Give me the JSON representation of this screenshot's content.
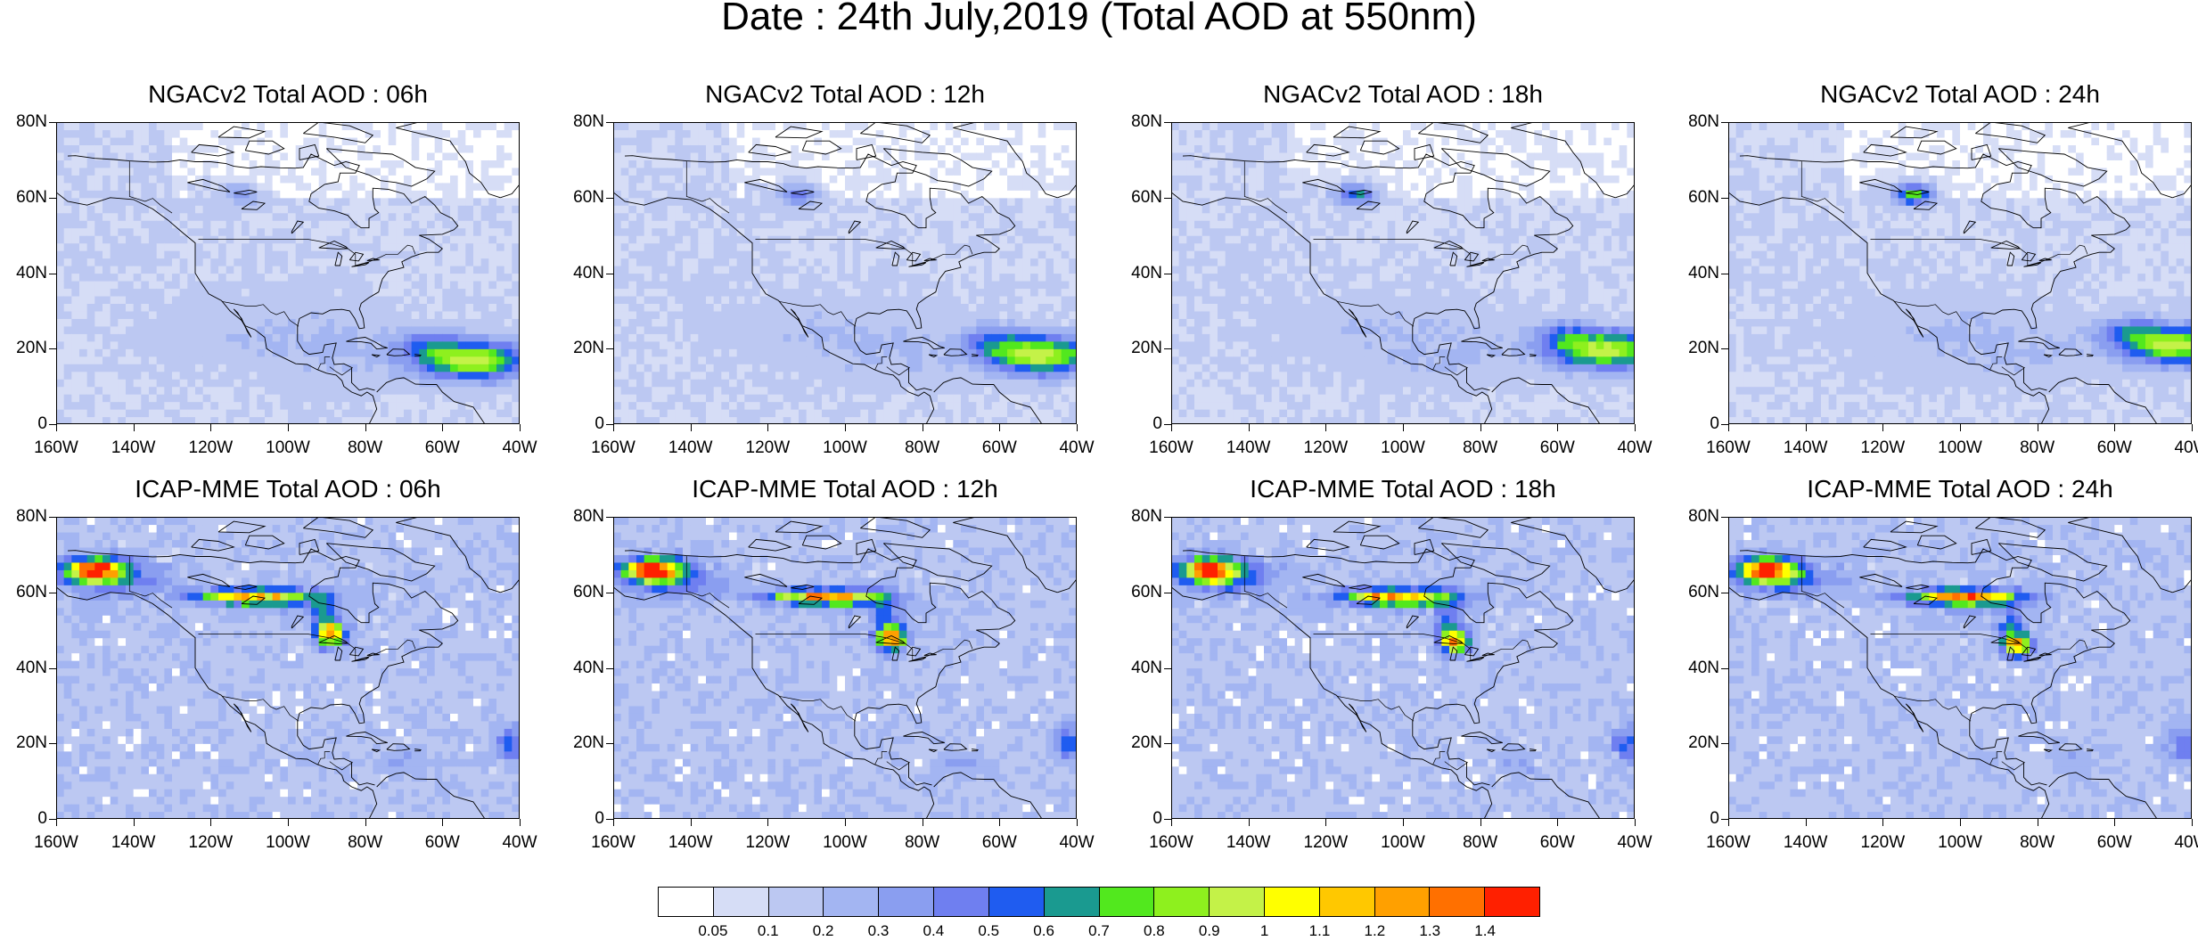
{
  "title": "Date : 24th July,2019 (Total AOD at 550nm)",
  "panels": [
    {
      "title": "NGACv2 Total AOD : 06h",
      "model": "ngac",
      "hour": 6
    },
    {
      "title": "NGACv2 Total AOD : 12h",
      "model": "ngac",
      "hour": 12
    },
    {
      "title": "NGACv2 Total AOD : 18h",
      "model": "ngac",
      "hour": 18
    },
    {
      "title": "NGACv2 Total AOD : 24h",
      "model": "ngac",
      "hour": 24
    },
    {
      "title": "ICAP-MME Total AOD : 06h",
      "model": "icap",
      "hour": 6
    },
    {
      "title": "ICAP-MME Total AOD : 12h",
      "model": "icap",
      "hour": 12
    },
    {
      "title": "ICAP-MME Total AOD : 18h",
      "model": "icap",
      "hour": 18
    },
    {
      "title": "ICAP-MME Total AOD : 24h",
      "model": "icap",
      "hour": 24
    }
  ],
  "axes": {
    "y_ticks": [
      "80N",
      "60N",
      "40N",
      "20N",
      "0"
    ],
    "y_values": [
      80,
      60,
      40,
      20,
      0
    ],
    "x_ticks": [
      "160W",
      "140W",
      "120W",
      "100W",
      "80W",
      "60W",
      "40W"
    ],
    "x_values": [
      -160,
      -140,
      -120,
      -100,
      -80,
      -60,
      -40
    ]
  },
  "colorbar": {
    "labels": [
      "0.05",
      "0.1",
      "0.2",
      "0.3",
      "0.4",
      "0.5",
      "0.6",
      "0.7",
      "0.8",
      "0.9",
      "1",
      "1.1",
      "1.2",
      "1.3",
      "1.4"
    ],
    "colors": [
      "#ffffff",
      "#d6ddf6",
      "#bcc8f2",
      "#a3b5f2",
      "#8a9ef0",
      "#6f7ff0",
      "#1f5cf0",
      "#1a9a90",
      "#52e81e",
      "#8ef01e",
      "#c4f248",
      "#ffff00",
      "#ffc800",
      "#ffa000",
      "#ff7000",
      "#ff2000"
    ]
  }
}
